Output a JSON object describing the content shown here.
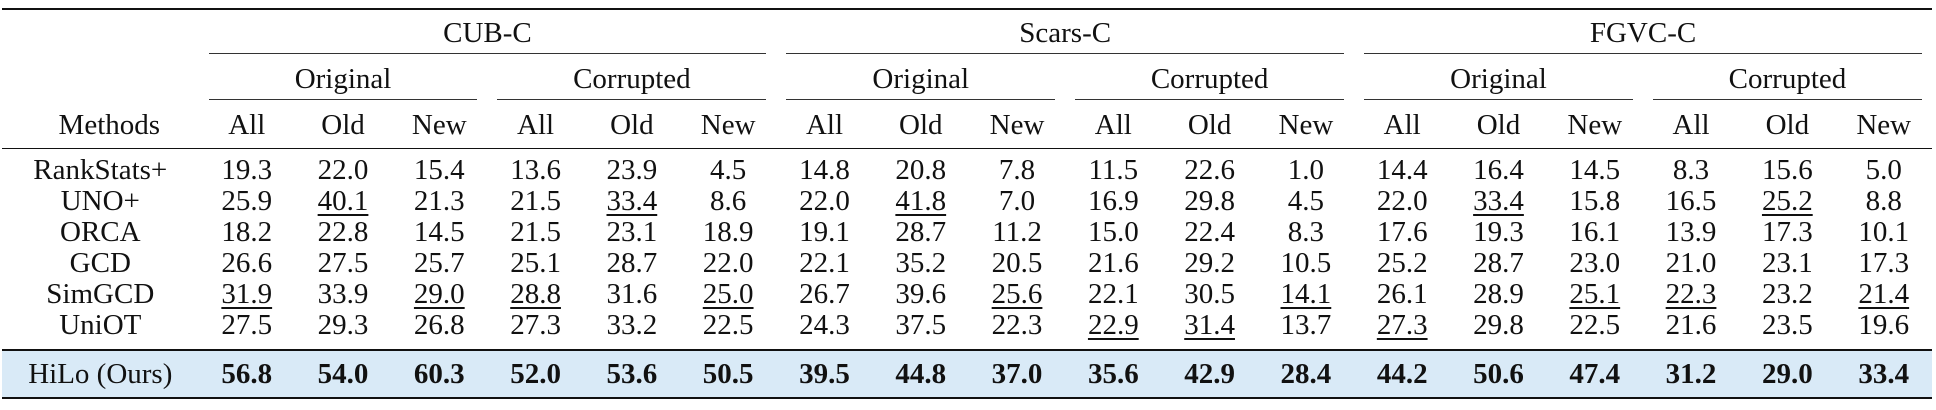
{
  "header": {
    "groups": [
      "CUB-C",
      "Scars-C",
      "FGVC-C"
    ],
    "subgroups": [
      "Original",
      "Corrupted"
    ],
    "methods_label": "Methods",
    "columns": [
      "All",
      "Old",
      "New"
    ]
  },
  "rows": [
    {
      "method": "RankStats+",
      "values": [
        "19.3",
        "22.0",
        "15.4",
        "13.6",
        "23.9",
        "4.5",
        "14.8",
        "20.8",
        "7.8",
        "11.5",
        "22.6",
        "1.0",
        "14.4",
        "16.4",
        "14.5",
        "8.3",
        "15.6",
        "5.0"
      ],
      "underline": []
    },
    {
      "method": "UNO+",
      "values": [
        "25.9",
        "40.1",
        "21.3",
        "21.5",
        "33.4",
        "8.6",
        "22.0",
        "41.8",
        "7.0",
        "16.9",
        "29.8",
        "4.5",
        "22.0",
        "33.4",
        "15.8",
        "16.5",
        "25.2",
        "8.8"
      ],
      "underline": [
        1,
        4,
        7,
        13,
        16
      ]
    },
    {
      "method": "ORCA",
      "values": [
        "18.2",
        "22.8",
        "14.5",
        "21.5",
        "23.1",
        "18.9",
        "19.1",
        "28.7",
        "11.2",
        "15.0",
        "22.4",
        "8.3",
        "17.6",
        "19.3",
        "16.1",
        "13.9",
        "17.3",
        "10.1"
      ],
      "underline": []
    },
    {
      "method": "GCD",
      "values": [
        "26.6",
        "27.5",
        "25.7",
        "25.1",
        "28.7",
        "22.0",
        "22.1",
        "35.2",
        "20.5",
        "21.6",
        "29.2",
        "10.5",
        "25.2",
        "28.7",
        "23.0",
        "21.0",
        "23.1",
        "17.3"
      ],
      "underline": []
    },
    {
      "method": "SimGCD",
      "values": [
        "31.9",
        "33.9",
        "29.0",
        "28.8",
        "31.6",
        "25.0",
        "26.7",
        "39.6",
        "25.6",
        "22.1",
        "30.5",
        "14.1",
        "26.1",
        "28.9",
        "25.1",
        "22.3",
        "23.2",
        "21.4"
      ],
      "underline": [
        0,
        2,
        3,
        5,
        8,
        11,
        14,
        15,
        17
      ]
    },
    {
      "method": "UniOT",
      "values": [
        "27.5",
        "29.3",
        "26.8",
        "27.3",
        "33.2",
        "22.5",
        "24.3",
        "37.5",
        "22.3",
        "22.9",
        "31.4",
        "13.7",
        "27.3",
        "29.8",
        "22.5",
        "21.6",
        "23.5",
        "19.6"
      ],
      "underline": [
        9,
        10,
        12
      ]
    }
  ],
  "ours": {
    "method": "HiLo (Ours)",
    "values": [
      "56.8",
      "54.0",
      "60.3",
      "52.0",
      "53.6",
      "50.5",
      "39.5",
      "44.8",
      "37.0",
      "35.6",
      "42.9",
      "28.4",
      "44.2",
      "50.6",
      "47.4",
      "31.2",
      "29.0",
      "33.4"
    ]
  },
  "colors": {
    "ours_highlight": "#d9eaf7",
    "text": "#111111"
  }
}
